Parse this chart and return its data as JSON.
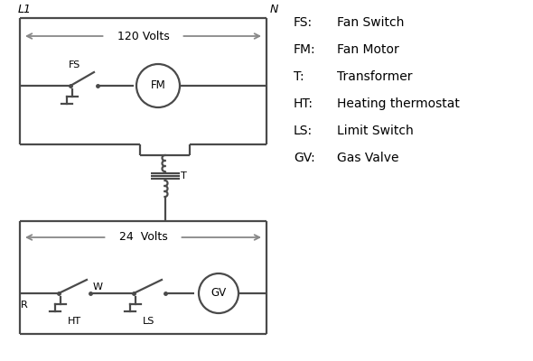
{
  "bg_color": "#ffffff",
  "line_color": "#4a4a4a",
  "text_color": "#000000",
  "lw": 1.6,
  "legend": {
    "FS": "Fan Switch",
    "FM": "Fan Motor",
    "T": "Transformer",
    "HT": "Heating thermostat",
    "LS": "Limit Switch",
    "GV": "Gas Valve"
  },
  "L1_label": "L1",
  "N_label": "N",
  "v120_label": "120 Volts",
  "v24_label": "24  Volts",
  "arrow_color": "#888888"
}
